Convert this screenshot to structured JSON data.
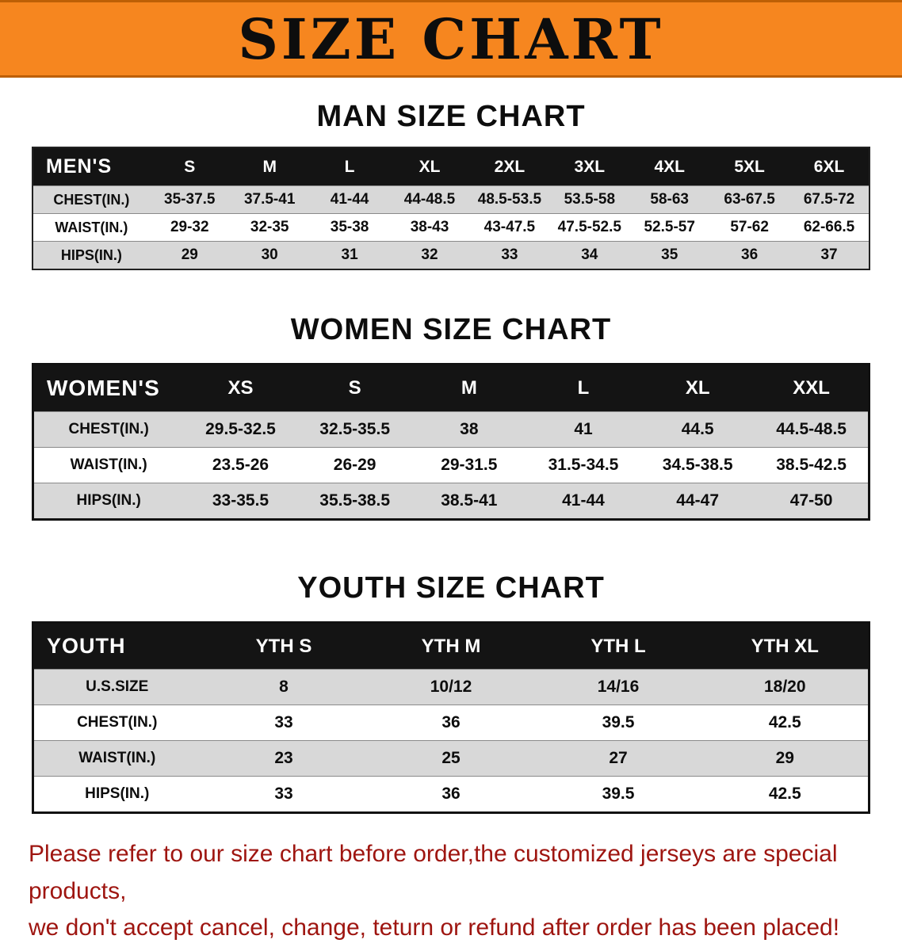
{
  "banner": {
    "title": "SIZE CHART"
  },
  "sections": [
    {
      "heading": "MAN SIZE CHART",
      "table": {
        "header": [
          "MEN'S",
          "S",
          "M",
          "L",
          "XL",
          "2XL",
          "3XL",
          "4XL",
          "5XL",
          "6XL"
        ],
        "rows": [
          [
            "CHEST(IN.)",
            "35-37.5",
            "37.5-41",
            "41-44",
            "44-48.5",
            "48.5-53.5",
            "53.5-58",
            "58-63",
            "63-67.5",
            "67.5-72"
          ],
          [
            "WAIST(IN.)",
            "29-32",
            "32-35",
            "35-38",
            "38-43",
            "43-47.5",
            "47.5-52.5",
            "52.5-57",
            "57-62",
            "62-66.5"
          ],
          [
            "HIPS(IN.)",
            "29",
            "30",
            "31",
            "32",
            "33",
            "34",
            "35",
            "36",
            "37"
          ]
        ]
      }
    },
    {
      "heading": "WOMEN SIZE CHART",
      "table": {
        "header": [
          "WOMEN'S",
          "XS",
          "S",
          "M",
          "L",
          "XL",
          "XXL"
        ],
        "rows": [
          [
            "CHEST(IN.)",
            "29.5-32.5",
            "32.5-35.5",
            "38",
            "41",
            "44.5",
            "44.5-48.5"
          ],
          [
            "WAIST(IN.)",
            "23.5-26",
            "26-29",
            "29-31.5",
            "31.5-34.5",
            "34.5-38.5",
            "38.5-42.5"
          ],
          [
            "HIPS(IN.)",
            "33-35.5",
            "35.5-38.5",
            "38.5-41",
            "41-44",
            "44-47",
            "47-50"
          ]
        ]
      }
    },
    {
      "heading": "YOUTH SIZE CHART",
      "table": {
        "header": [
          "YOUTH",
          "YTH S",
          "YTH M",
          "YTH L",
          "YTH XL"
        ],
        "rows": [
          [
            "U.S.SIZE",
            "8",
            "10/12",
            "14/16",
            "18/20"
          ],
          [
            "CHEST(IN.)",
            "33",
            "36",
            "39.5",
            "42.5"
          ],
          [
            "WAIST(IN.)",
            "23",
            "25",
            "27",
            "29"
          ],
          [
            "HIPS(IN.)",
            "33",
            "36",
            "39.5",
            "42.5"
          ]
        ]
      }
    }
  ],
  "footer": {
    "line1": "Please refer to our size chart before order,the customized jerseys are special products,",
    "line2": "we don't accept cancel, change, teturn or refund after order has been placed!"
  },
  "colors": {
    "banner_orange": "#f6861f",
    "header_black": "#141414",
    "row_gray": "#d8d8d8",
    "note_red": "#9e1510"
  }
}
